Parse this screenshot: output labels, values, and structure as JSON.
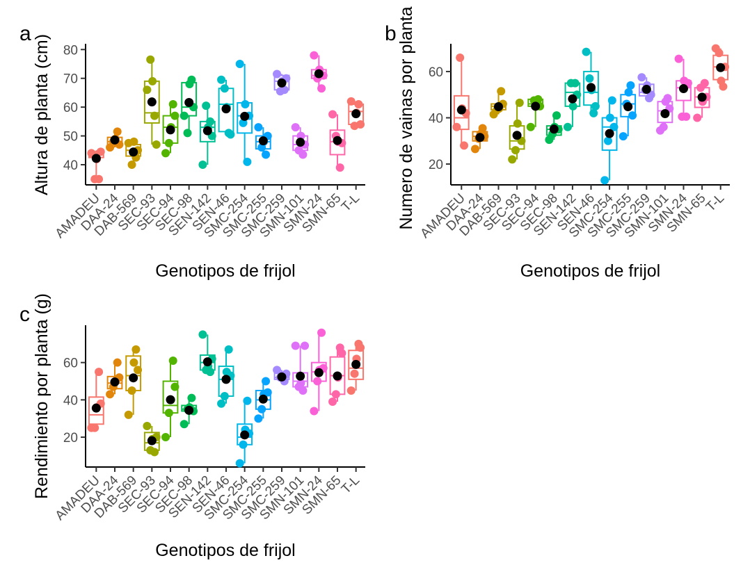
{
  "colors": [
    "#F8766D",
    "#E2850B",
    "#C49A00",
    "#99A800",
    "#53B400",
    "#00BC56",
    "#00C094",
    "#00BFC4",
    "#00B6EB",
    "#06A4FF",
    "#A58AFF",
    "#DF70F8",
    "#FB61D7",
    "#FF66A8"
  ],
  "chart_data": [
    {
      "panel": "a",
      "type": "box",
      "xlabel": "Genotipos de frijol",
      "ylabel": "Altura de planta (cm)",
      "ylim": [
        33,
        82
      ],
      "yticks": [
        40,
        50,
        60,
        70,
        80
      ],
      "grid": false,
      "categories": [
        "AMADEU",
        "DAA-24",
        "DAB-569",
        "SEC-93",
        "SEC-94",
        "SEC-98",
        "SEN-142",
        "SEN-46",
        "SMC-254",
        "SMC-255",
        "SMC-259",
        "SMN-101",
        "SMN-24",
        "SMN-65",
        "T-L"
      ],
      "boxes": [
        {
          "min": 35,
          "q1": 42.5,
          "median": 44,
          "q3": 44.5,
          "max": 45
        },
        {
          "min": 46,
          "q1": 47,
          "median": 48,
          "q3": 49.5,
          "max": 51.5
        },
        {
          "min": 40,
          "q1": 43,
          "median": 45,
          "q3": 47,
          "max": 48
        },
        {
          "min": 47,
          "q1": 54.5,
          "median": 58,
          "q3": 69,
          "max": 76.5
        },
        {
          "min": 44,
          "q1": 47.5,
          "median": 53,
          "q3": 57,
          "max": 61
        },
        {
          "min": 51,
          "q1": 57,
          "median": 60,
          "q3": 68.5,
          "max": 69.5
        },
        {
          "min": 40,
          "q1": 48,
          "median": 53,
          "q3": 55,
          "max": 60.5
        },
        {
          "min": 50.5,
          "q1": 51.5,
          "median": 61,
          "q3": 66.5,
          "max": 69.5
        },
        {
          "min": 41,
          "q1": 51,
          "median": 57,
          "q3": 61.5,
          "max": 75
        },
        {
          "min": 43.5,
          "q1": 45.5,
          "median": 48,
          "q3": 50,
          "max": 53
        },
        {
          "min": 65.5,
          "q1": 66,
          "median": 69,
          "q3": 71,
          "max": 71.5
        },
        {
          "min": 43.5,
          "q1": 45,
          "median": 47,
          "q3": 50,
          "max": 53
        },
        {
          "min": 66.5,
          "q1": 70,
          "median": 71,
          "q3": 73,
          "max": 78
        },
        {
          "min": 39,
          "q1": 43.5,
          "median": 48,
          "q3": 52,
          "max": 57.5
        },
        {
          "min": 53.5,
          "q1": 54,
          "median": 58.5,
          "q3": 61,
          "max": 62
        }
      ],
      "means": [
        42.2,
        48.6,
        44.4,
        61.8,
        52.1,
        61.6,
        51.8,
        59.4,
        56.8,
        48.3,
        68.4,
        47.8,
        71.6,
        48.4,
        57.7
      ],
      "points": [
        [
          44,
          35,
          35,
          44.5,
          42
        ],
        [
          46,
          51.5,
          48,
          47,
          49
        ],
        [
          47.5,
          42.5,
          40,
          45,
          48
        ],
        [
          66,
          57,
          76.5,
          47,
          69
        ],
        [
          44,
          61,
          47.5,
          57,
          53
        ],
        [
          57,
          69.5,
          51,
          60,
          68
        ],
        [
          40,
          55,
          60.5,
          50,
          53
        ],
        [
          69.5,
          51,
          66.5,
          50.5,
          60
        ],
        [
          75,
          41,
          54.5,
          57,
          61
        ],
        [
          53,
          43.5,
          46,
          50,
          48
        ],
        [
          71.5,
          66,
          65.5,
          70,
          69
        ],
        [
          53,
          43.5,
          45,
          47,
          50
        ],
        [
          78,
          66.5,
          70,
          71,
          73
        ],
        [
          57.5,
          39,
          50,
          47.5,
          48
        ],
        [
          62,
          61,
          53.5,
          54,
          58
        ]
      ]
    },
    {
      "panel": "b",
      "type": "box",
      "xlabel": "Genotipos de frijol",
      "ylabel": "Numero de vainas por planta",
      "ylim": [
        11,
        72
      ],
      "yticks": [
        20,
        40,
        60
      ],
      "grid": false,
      "categories": [
        "AMADEU",
        "DAA-24",
        "DAB-569",
        "SEC-93",
        "SEC-94",
        "SEC-98",
        "SEN-142",
        "SEN-46",
        "SMC-254",
        "SMC-255",
        "SMC-259",
        "SMN-101",
        "SMN-24",
        "SMN-65",
        "T-L"
      ],
      "boxes": [
        {
          "min": 28,
          "q1": 35,
          "median": 40,
          "q3": 49.5,
          "max": 66
        },
        {
          "min": 26.5,
          "q1": 30,
          "median": 32,
          "q3": 34,
          "max": 35.5
        },
        {
          "min": 41.5,
          "q1": 43.5,
          "median": 45,
          "q3": 46,
          "max": 51.5
        },
        {
          "min": 22,
          "q1": 26.5,
          "median": 30,
          "q3": 36.5,
          "max": 46.5
        },
        {
          "min": 36,
          "q1": 45,
          "median": 46,
          "q3": 48,
          "max": 48
        },
        {
          "min": 30.5,
          "q1": 32.5,
          "median": 35,
          "q3": 36.5,
          "max": 41
        },
        {
          "min": 36,
          "q1": 45,
          "median": 51,
          "q3": 55,
          "max": 55
        },
        {
          "min": 42,
          "q1": 45.5,
          "median": 51,
          "q3": 60,
          "max": 68.5
        },
        {
          "min": 13,
          "q1": 26,
          "median": 36,
          "q3": 40,
          "max": 47.5
        },
        {
          "min": 32,
          "q1": 40.5,
          "median": 46,
          "q3": 50,
          "max": 54
        },
        {
          "min": 48.5,
          "q1": 49.5,
          "median": 51,
          "q3": 54.5,
          "max": 57.5
        },
        {
          "min": 34.5,
          "q1": 38,
          "median": 43,
          "q3": 47,
          "max": 48.5
        },
        {
          "min": 40.5,
          "q1": 47.5,
          "median": 53,
          "q3": 56,
          "max": 65.5
        },
        {
          "min": 40,
          "q1": 44.5,
          "median": 49,
          "q3": 53,
          "max": 55
        },
        {
          "min": 53.5,
          "q1": 56.5,
          "median": 62,
          "q3": 67,
          "max": 70
        }
      ],
      "means": [
        43.4,
        31.5,
        44.8,
        32.4,
        45.0,
        35.1,
        48.2,
        53.1,
        33.2,
        44.8,
        52.3,
        41.8,
        52.6,
        48.9,
        61.7
      ],
      "points": [
        [
          36,
          28,
          66,
          42,
          44
        ],
        [
          26.5,
          35.5,
          31,
          32,
          33
        ],
        [
          41.5,
          51.5,
          43.5,
          46,
          44
        ],
        [
          22,
          46.5,
          26,
          30,
          37.5
        ],
        [
          36,
          48,
          47.5,
          45,
          47
        ],
        [
          30.5,
          41,
          33,
          35,
          36
        ],
        [
          36,
          55,
          55,
          50,
          45
        ],
        [
          68.5,
          42,
          57,
          45,
          52
        ],
        [
          13,
          47.5,
          30,
          36,
          40
        ],
        [
          32,
          54,
          46,
          41,
          51
        ],
        [
          57.5,
          48.5,
          52,
          50,
          54
        ],
        [
          34.5,
          48.5,
          36,
          44,
          47
        ],
        [
          65.5,
          40.5,
          40.5,
          55,
          56
        ],
        [
          40,
          55,
          53,
          49,
          47
        ],
        [
          70,
          53.5,
          68,
          62,
          56
        ]
      ]
    },
    {
      "panel": "c",
      "type": "box",
      "xlabel": "Genotipos de frijol",
      "ylabel": "Rendimiento por planta (g)",
      "ylim": [
        4,
        80
      ],
      "yticks": [
        20,
        40,
        60
      ],
      "grid": false,
      "categories": [
        "AMADEU",
        "DAA-24",
        "DAB-569",
        "SEC-93",
        "SEC-94",
        "SEC-98",
        "SEN-142",
        "SEN-46",
        "SMC-254",
        "SMC-255",
        "SMC-259",
        "SMN-101",
        "SMN-24",
        "SMN-65",
        "T-L"
      ],
      "boxes": [
        {
          "min": 25,
          "q1": 27,
          "median": 32,
          "q3": 41.5,
          "max": 55
        },
        {
          "min": 43,
          "q1": 46,
          "median": 49,
          "q3": 52.5,
          "max": 60
        },
        {
          "min": 32,
          "q1": 45,
          "median": 53,
          "q3": 63.5,
          "max": 67
        },
        {
          "min": 12,
          "q1": 13,
          "median": 17,
          "q3": 22.5,
          "max": 26
        },
        {
          "min": 20,
          "q1": 33,
          "median": 37,
          "q3": 50,
          "max": 61
        },
        {
          "min": 27,
          "q1": 34,
          "median": 35,
          "q3": 37,
          "max": 41
        },
        {
          "min": 55,
          "q1": 56,
          "median": 60,
          "q3": 64,
          "max": 75
        },
        {
          "min": 38,
          "q1": 42,
          "median": 51,
          "q3": 58,
          "max": 67
        },
        {
          "min": 6,
          "q1": 16,
          "median": 20,
          "q3": 27,
          "max": 39.5
        },
        {
          "min": 30,
          "q1": 35,
          "median": 40,
          "q3": 45,
          "max": 50
        },
        {
          "min": 50,
          "q1": 51,
          "median": 52,
          "q3": 54.5,
          "max": 56
        },
        {
          "min": 45,
          "q1": 47,
          "median": 50,
          "q3": 54.5,
          "max": 69
        },
        {
          "min": 34,
          "q1": 50,
          "median": 55,
          "q3": 60,
          "max": 76
        },
        {
          "min": 39,
          "q1": 43,
          "median": 53,
          "q3": 63,
          "max": 68
        },
        {
          "min": 45,
          "q1": 51,
          "median": 57,
          "q3": 66.5,
          "max": 70
        }
      ],
      "means": [
        35.6,
        49.6,
        51.8,
        18.1,
        40.1,
        34.4,
        60.4,
        51.0,
        21.2,
        40.4,
        52.3,
        52.7,
        54.6,
        52.8,
        59.0
      ],
      "points": [
        [
          25,
          55,
          25,
          38,
          36
        ],
        [
          43,
          60,
          47,
          52,
          50
        ],
        [
          32,
          67,
          45,
          56,
          60
        ],
        [
          26,
          12,
          13,
          20,
          19
        ],
        [
          20,
          61,
          33,
          47,
          40
        ],
        [
          27,
          41,
          35,
          34,
          36
        ],
        [
          75,
          55,
          56,
          62,
          58
        ],
        [
          38,
          67,
          42,
          53,
          55
        ],
        [
          6,
          39.5,
          16,
          22,
          24
        ],
        [
          30,
          50,
          35,
          44,
          43
        ],
        [
          56,
          50,
          52,
          54,
          53
        ],
        [
          69,
          45,
          47,
          69,
          49
        ],
        [
          34,
          76,
          50,
          57,
          56
        ],
        [
          39,
          68,
          43,
          65,
          52
        ],
        [
          45,
          70,
          54,
          68,
          62
        ]
      ]
    }
  ]
}
